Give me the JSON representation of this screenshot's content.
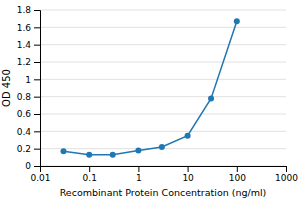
{
  "chart_data": {
    "type": "line",
    "x": [
      0.03,
      0.1,
      0.3,
      1,
      3,
      10,
      30,
      100
    ],
    "values": [
      0.17,
      0.13,
      0.13,
      0.18,
      0.22,
      0.35,
      0.78,
      1.67
    ],
    "xlabel": "Recombinant Protein Concentration (ng/ml)",
    "ylabel": "OD 450",
    "xlim": [
      0.01,
      1000
    ],
    "ylim": [
      0,
      1.8
    ],
    "xticks": [
      0.01,
      0.1,
      1,
      10,
      100,
      1000
    ],
    "yticks": [
      0,
      0.2,
      0.4,
      0.6,
      0.8,
      1,
      1.2,
      1.4,
      1.6,
      1.8
    ],
    "log": "x",
    "grid": true,
    "marker": "circle"
  }
}
